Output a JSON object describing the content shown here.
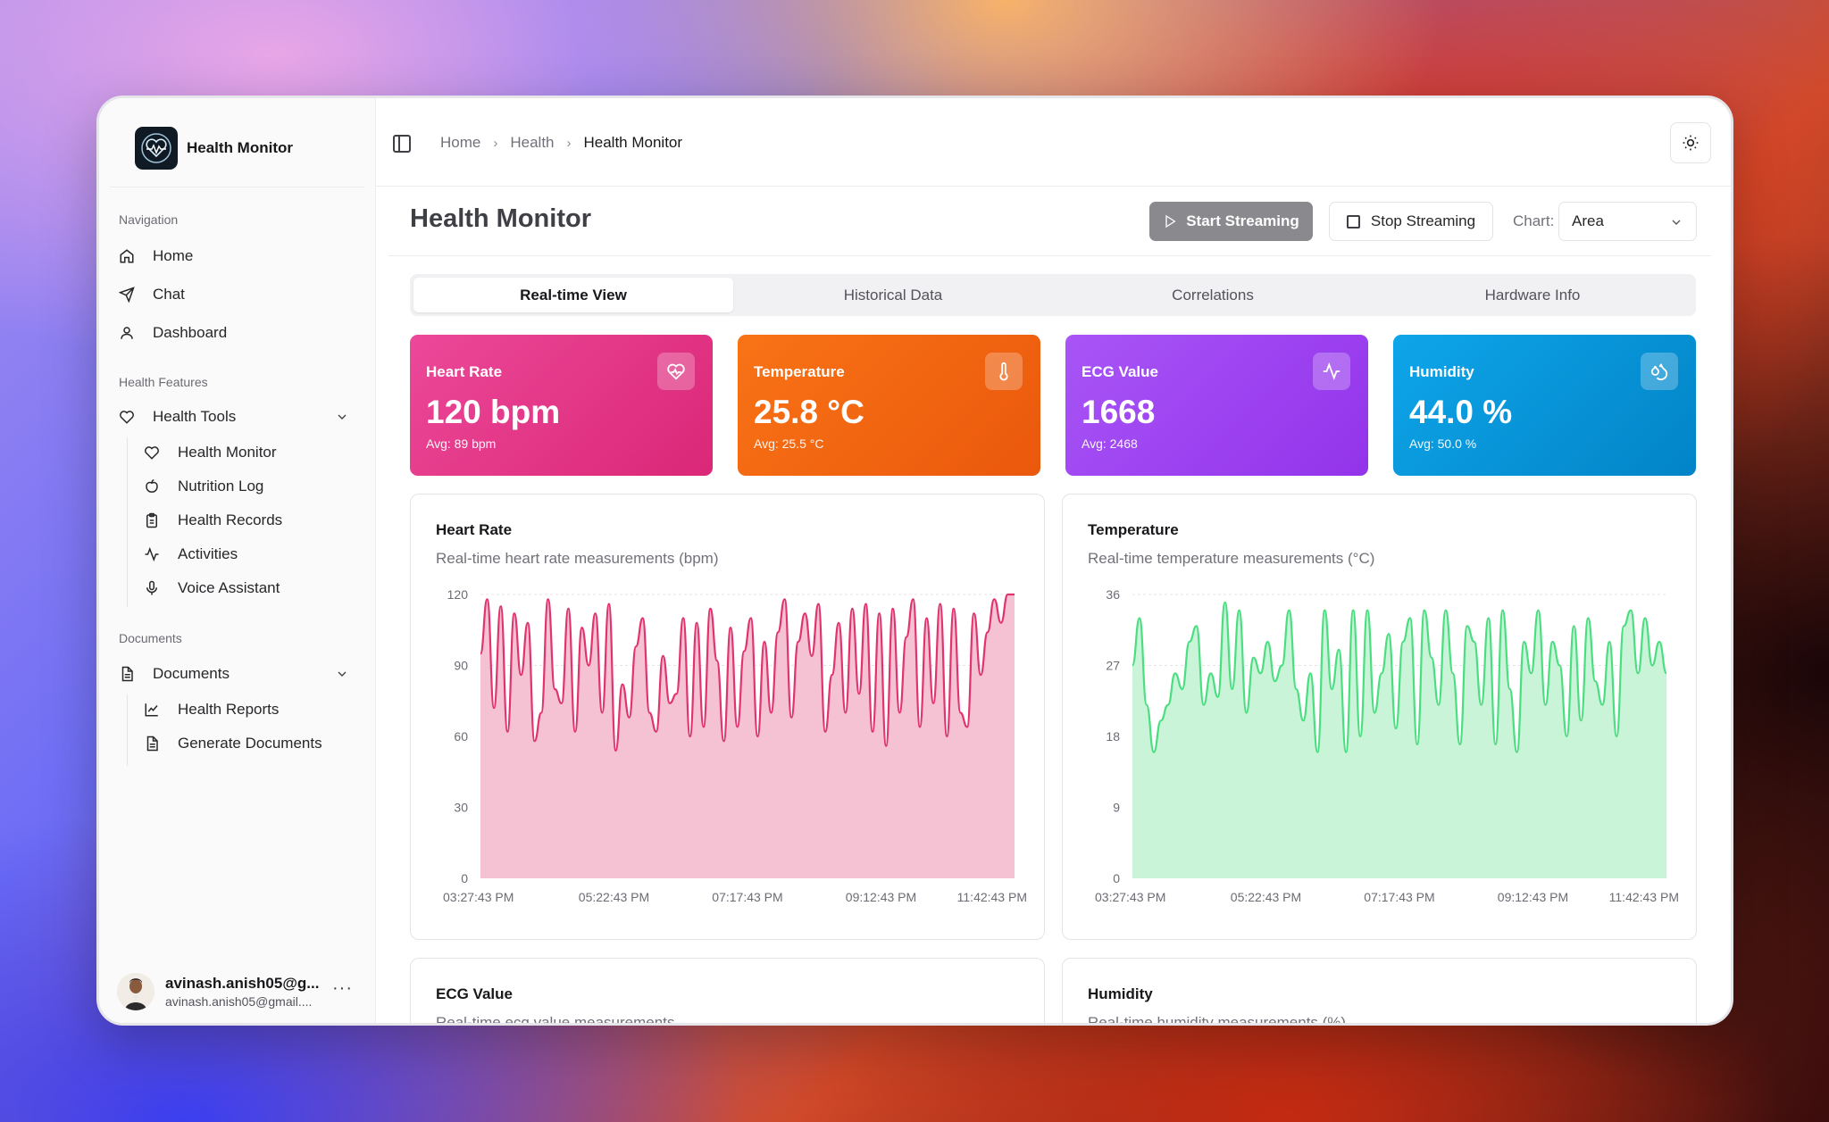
{
  "app": {
    "name": "Health Monitor"
  },
  "sidebar": {
    "navigation_label": "Navigation",
    "nav": [
      {
        "label": "Home",
        "icon": "home-icon"
      },
      {
        "label": "Chat",
        "icon": "send-icon"
      },
      {
        "label": "Dashboard",
        "icon": "user-icon"
      }
    ],
    "features_label": "Health Features",
    "health_tools": {
      "label": "Health Tools",
      "items": [
        {
          "label": "Health Monitor",
          "icon": "heart-icon"
        },
        {
          "label": "Nutrition Log",
          "icon": "apple-icon"
        },
        {
          "label": "Health Records",
          "icon": "clipboard-icon"
        },
        {
          "label": "Activities",
          "icon": "activity-icon"
        },
        {
          "label": "Voice Assistant",
          "icon": "mic-icon"
        }
      ]
    },
    "documents_label": "Documents",
    "documents": {
      "label": "Documents",
      "items": [
        {
          "label": "Health Reports",
          "icon": "line-chart-icon"
        },
        {
          "label": "Generate Documents",
          "icon": "file-text-icon"
        }
      ]
    },
    "user": {
      "name": "avinash.anish05@g...",
      "email": "avinash.anish05@gmail...."
    }
  },
  "breadcrumb": [
    "Home",
    "Health",
    "Health Monitor"
  ],
  "page": {
    "title": "Health Monitor",
    "start_label": "Start Streaming",
    "stop_label": "Stop Streaming",
    "chart_label": "Chart:",
    "chart_value": "Area"
  },
  "tabs": [
    "Real-time View",
    "Historical Data",
    "Correlations",
    "Hardware Info"
  ],
  "cards": [
    {
      "title": "Heart Rate",
      "value": "120 bpm",
      "avg": "Avg: 89 bpm",
      "icon": "heart-pulse-icon"
    },
    {
      "title": "Temperature",
      "value": "25.8 °C",
      "avg": "Avg: 25.5 °C",
      "icon": "thermometer-icon"
    },
    {
      "title": "ECG Value",
      "value": "1668",
      "avg": "Avg: 2468",
      "icon": "activity-icon"
    },
    {
      "title": "Humidity",
      "value": "44.0 %",
      "avg": "Avg: 50.0 %",
      "icon": "droplets-icon"
    }
  ],
  "panels": {
    "heart": {
      "title": "Heart Rate",
      "subtitle": "Real-time heart rate measurements (bpm)"
    },
    "temp": {
      "title": "Temperature",
      "subtitle": "Real-time temperature measurements (°C)"
    },
    "ecg": {
      "title": "ECG Value",
      "subtitle": "Real-time ecg value measurements"
    },
    "humidity": {
      "title": "Humidity",
      "subtitle": "Real-time humidity measurements (%)"
    }
  },
  "chart_data": [
    {
      "type": "area",
      "title": "Heart Rate",
      "subtitle": "Real-time heart rate measurements (bpm)",
      "color": "#e0336f",
      "fill": "#f5c2d4",
      "ylim": [
        0,
        120
      ],
      "yticks": [
        0,
        30,
        60,
        90,
        120
      ],
      "xticks": [
        "03:27:43 PM",
        "05:22:43 PM",
        "07:17:43 PM",
        "09:12:43 PM",
        "11:42:43 PM"
      ],
      "values": [
        95,
        118,
        72,
        115,
        62,
        112,
        86,
        108,
        58,
        70,
        118,
        80,
        74,
        114,
        62,
        106,
        90,
        112,
        70,
        116,
        54,
        82,
        68,
        98,
        110,
        70,
        62,
        94,
        74,
        78,
        110,
        60,
        108,
        64,
        114,
        92,
        58,
        106,
        64,
        96,
        110,
        60,
        100,
        70,
        104,
        118,
        68,
        100,
        112,
        94,
        116,
        62,
        86,
        108,
        70,
        114,
        78,
        116,
        62,
        112,
        56,
        114,
        70,
        102,
        118,
        64,
        110,
        74,
        116,
        60,
        114,
        70,
        64,
        112,
        86,
        104,
        118,
        108,
        120,
        120
      ]
    },
    {
      "type": "area",
      "title": "Temperature",
      "subtitle": "Real-time temperature measurements (°C)",
      "color": "#4ade80",
      "fill": "#c9f4d8",
      "ylim": [
        0,
        36
      ],
      "yticks": [
        0,
        9,
        18,
        27,
        36
      ],
      "xticks": [
        "03:27:43 PM",
        "05:22:43 PM",
        "07:17:43 PM",
        "09:12:43 PM",
        "11:42:43 PM"
      ],
      "values": [
        27,
        33,
        22,
        16,
        20,
        22,
        26,
        24,
        30,
        32,
        22,
        26,
        23,
        35,
        24,
        34,
        21,
        28,
        26,
        30,
        25,
        27,
        34,
        24,
        20,
        26,
        16,
        34,
        24,
        29,
        16,
        34,
        18,
        34,
        21,
        26,
        31,
        19,
        30,
        33,
        17,
        34,
        28,
        22,
        34,
        26,
        17,
        32,
        30,
        22,
        33,
        17,
        34,
        24,
        16,
        30,
        26,
        34,
        22,
        30,
        27,
        18,
        32,
        20,
        33,
        25,
        22,
        30,
        18,
        32,
        34,
        26,
        33,
        27,
        30,
        26
      ]
    }
  ]
}
